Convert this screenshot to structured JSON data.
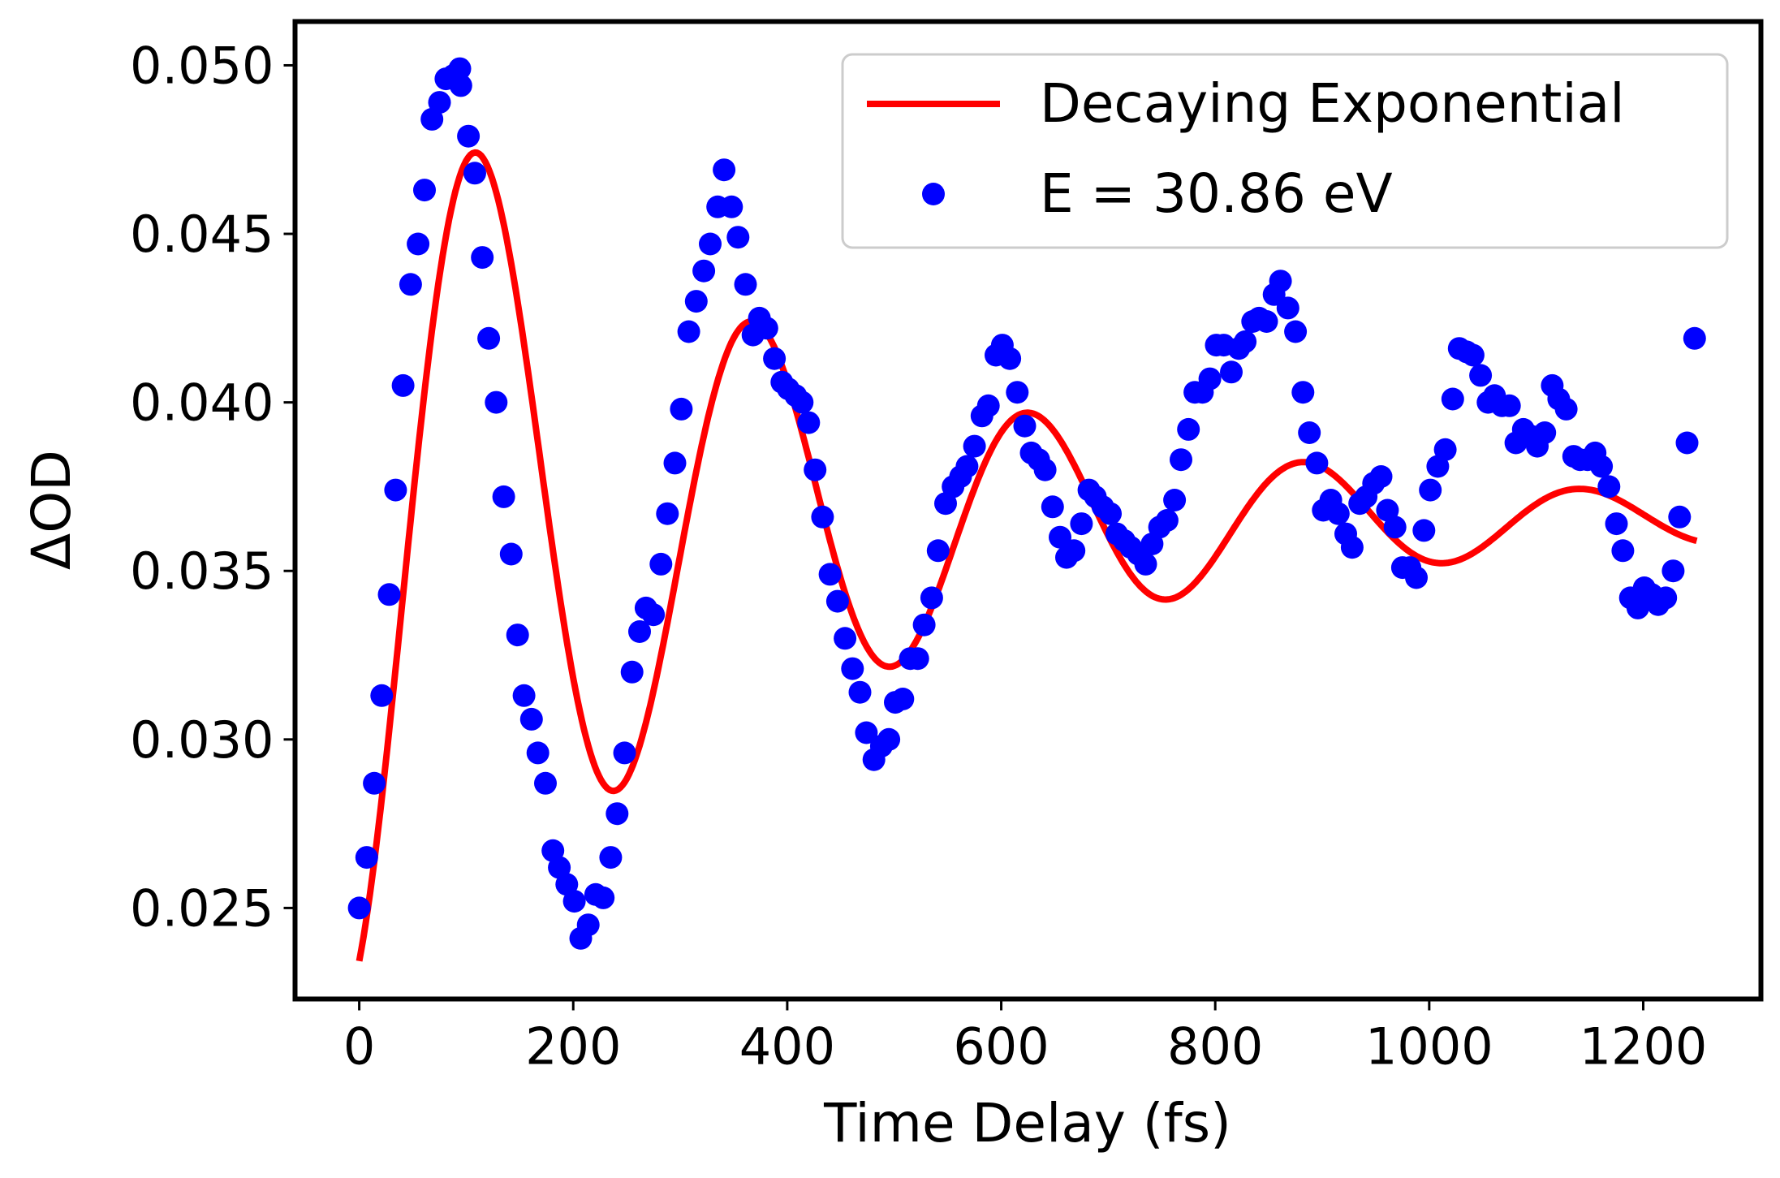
{
  "chart_data": {
    "type": "line+scatter",
    "title": "",
    "xlabel": "Time Delay (fs)",
    "ylabel": "ΔOD",
    "xlim": [
      -60,
      1310
    ],
    "ylim": [
      0.0223,
      0.0513
    ],
    "xticks": [
      0,
      200,
      400,
      600,
      800,
      1000,
      1200
    ],
    "xtick_labels": [
      "0",
      "200",
      "400",
      "600",
      "800",
      "1000",
      "1200"
    ],
    "yticks": [
      0.025,
      0.03,
      0.035,
      0.04,
      0.045,
      0.05
    ],
    "ytick_labels": [
      "0.025",
      "0.030",
      "0.035",
      "0.040",
      "0.045",
      "0.050"
    ],
    "grid": false,
    "legend": {
      "location": "upper right",
      "entries": [
        "Decaying Exponential",
        "E = 30.86 eV"
      ]
    },
    "colors": {
      "fit": "#ff0000",
      "data": "#0000ff",
      "frame": "#000000",
      "legend_border": "#cccccc"
    },
    "series": [
      {
        "name": "Decaying Exponential",
        "kind": "line",
        "model": {
          "offset": 0.0365,
          "amplitude": 0.0142,
          "decay_fs": 420,
          "period_fs": 258,
          "phase_rad": -1.17,
          "x_start": 0,
          "x_end": 1250
        }
      },
      {
        "name": "E = 30.86 eV",
        "kind": "scatter",
        "points": [
          [
            0,
            0.025
          ],
          [
            7,
            0.0265
          ],
          [
            14,
            0.0287
          ],
          [
            21,
            0.0313
          ],
          [
            28,
            0.0343
          ],
          [
            34,
            0.0374
          ],
          [
            41,
            0.0405
          ],
          [
            48,
            0.0435
          ],
          [
            55,
            0.0447
          ],
          [
            61,
            0.0463
          ],
          [
            68,
            0.0484
          ],
          [
            75,
            0.0489
          ],
          [
            81,
            0.0496
          ],
          [
            88,
            0.0497
          ],
          [
            94,
            0.0499
          ],
          [
            95,
            0.0494
          ],
          [
            102,
            0.0479
          ],
          [
            108,
            0.0468
          ],
          [
            115,
            0.0443
          ],
          [
            121,
            0.0419
          ],
          [
            128,
            0.04
          ],
          [
            135,
            0.0372
          ],
          [
            142,
            0.0355
          ],
          [
            148,
            0.0331
          ],
          [
            154,
            0.0313
          ],
          [
            161,
            0.0306
          ],
          [
            167,
            0.0296
          ],
          [
            174,
            0.0287
          ],
          [
            181,
            0.0267
          ],
          [
            187,
            0.0262
          ],
          [
            194,
            0.0257
          ],
          [
            201,
            0.0252
          ],
          [
            207,
            0.0241
          ],
          [
            214,
            0.0245
          ],
          [
            221,
            0.0254
          ],
          [
            228,
            0.0253
          ],
          [
            235,
            0.0265
          ],
          [
            241,
            0.0278
          ],
          [
            248,
            0.0296
          ],
          [
            255,
            0.032
          ],
          [
            262,
            0.0332
          ],
          [
            268,
            0.0339
          ],
          [
            275,
            0.0337
          ],
          [
            282,
            0.0352
          ],
          [
            288,
            0.0367
          ],
          [
            295,
            0.0382
          ],
          [
            301,
            0.0398
          ],
          [
            308,
            0.0421
          ],
          [
            315,
            0.043
          ],
          [
            322,
            0.0439
          ],
          [
            328,
            0.0447
          ],
          [
            335,
            0.0458
          ],
          [
            341,
            0.0469
          ],
          [
            348,
            0.0458
          ],
          [
            354,
            0.0449
          ],
          [
            361,
            0.0435
          ],
          [
            368,
            0.042
          ],
          [
            374,
            0.0425
          ],
          [
            381,
            0.0422
          ],
          [
            388,
            0.0413
          ],
          [
            395,
            0.0406
          ],
          [
            401,
            0.0404
          ],
          [
            408,
            0.0402
          ],
          [
            414,
            0.04
          ],
          [
            420,
            0.0394
          ],
          [
            426,
            0.038
          ],
          [
            433,
            0.0366
          ],
          [
            440,
            0.0349
          ],
          [
            447,
            0.0341
          ],
          [
            454,
            0.033
          ],
          [
            461,
            0.0321
          ],
          [
            468,
            0.0314
          ],
          [
            474,
            0.0302
          ],
          [
            481,
            0.0294
          ],
          [
            488,
            0.0298
          ],
          [
            495,
            0.03
          ],
          [
            501,
            0.0311
          ],
          [
            508,
            0.0312
          ],
          [
            515,
            0.0324
          ],
          [
            522,
            0.0324
          ],
          [
            528,
            0.0334
          ],
          [
            535,
            0.0342
          ],
          [
            541,
            0.0356
          ],
          [
            548,
            0.037
          ],
          [
            555,
            0.0375
          ],
          [
            562,
            0.0378
          ],
          [
            568,
            0.0381
          ],
          [
            575,
            0.0387
          ],
          [
            582,
            0.0396
          ],
          [
            588,
            0.0399
          ],
          [
            595,
            0.0414
          ],
          [
            601,
            0.0417
          ],
          [
            608,
            0.0413
          ],
          [
            615,
            0.0403
          ],
          [
            622,
            0.0393
          ],
          [
            628,
            0.0385
          ],
          [
            635,
            0.0383
          ],
          [
            641,
            0.038
          ],
          [
            648,
            0.0369
          ],
          [
            655,
            0.036
          ],
          [
            661,
            0.0354
          ],
          [
            668,
            0.0356
          ],
          [
            675,
            0.0364
          ],
          [
            682,
            0.0374
          ],
          [
            688,
            0.0372
          ],
          [
            695,
            0.0369
          ],
          [
            702,
            0.0367
          ],
          [
            708,
            0.0361
          ],
          [
            715,
            0.0359
          ],
          [
            721,
            0.0357
          ],
          [
            728,
            0.0355
          ],
          [
            735,
            0.0352
          ],
          [
            741,
            0.0358
          ],
          [
            748,
            0.0363
          ],
          [
            755,
            0.0365
          ],
          [
            762,
            0.0371
          ],
          [
            768,
            0.0383
          ],
          [
            775,
            0.0392
          ],
          [
            781,
            0.0403
          ],
          [
            788,
            0.0403
          ],
          [
            795,
            0.0407
          ],
          [
            801,
            0.0417
          ],
          [
            808,
            0.0417
          ],
          [
            815,
            0.0409
          ],
          [
            822,
            0.0416
          ],
          [
            828,
            0.0418
          ],
          [
            835,
            0.0424
          ],
          [
            841,
            0.0425
          ],
          [
            848,
            0.0424
          ],
          [
            855,
            0.0432
          ],
          [
            861,
            0.0436
          ],
          [
            868,
            0.0428
          ],
          [
            875,
            0.0421
          ],
          [
            882,
            0.0403
          ],
          [
            888,
            0.0391
          ],
          [
            895,
            0.0382
          ],
          [
            901,
            0.0368
          ],
          [
            908,
            0.0371
          ],
          [
            915,
            0.0367
          ],
          [
            922,
            0.0361
          ],
          [
            928,
            0.0357
          ],
          [
            935,
            0.037
          ],
          [
            941,
            0.0372
          ],
          [
            948,
            0.0376
          ],
          [
            955,
            0.0378
          ],
          [
            961,
            0.0368
          ],
          [
            968,
            0.0363
          ],
          [
            975,
            0.0351
          ],
          [
            982,
            0.0351
          ],
          [
            988,
            0.0348
          ],
          [
            995,
            0.0362
          ],
          [
            1001,
            0.0374
          ],
          [
            1008,
            0.0381
          ],
          [
            1015,
            0.0386
          ],
          [
            1022,
            0.0401
          ],
          [
            1028,
            0.0416
          ],
          [
            1035,
            0.0415
          ],
          [
            1041,
            0.0414
          ],
          [
            1048,
            0.0408
          ],
          [
            1055,
            0.04
          ],
          [
            1061,
            0.0402
          ],
          [
            1068,
            0.0399
          ],
          [
            1075,
            0.0399
          ],
          [
            1081,
            0.0388
          ],
          [
            1088,
            0.0392
          ],
          [
            1095,
            0.039
          ],
          [
            1101,
            0.0387
          ],
          [
            1108,
            0.0391
          ],
          [
            1115,
            0.0405
          ],
          [
            1121,
            0.0401
          ],
          [
            1128,
            0.0398
          ],
          [
            1135,
            0.0384
          ],
          [
            1141,
            0.0383
          ],
          [
            1148,
            0.0383
          ],
          [
            1155,
            0.0385
          ],
          [
            1161,
            0.0381
          ],
          [
            1168,
            0.0375
          ],
          [
            1175,
            0.0364
          ],
          [
            1181,
            0.0356
          ],
          [
            1188,
            0.0342
          ],
          [
            1195,
            0.0339
          ],
          [
            1201,
            0.0345
          ],
          [
            1208,
            0.0343
          ],
          [
            1214,
            0.034
          ],
          [
            1221,
            0.0342
          ],
          [
            1228,
            0.035
          ],
          [
            1234,
            0.0366
          ],
          [
            1241,
            0.0388
          ],
          [
            1248,
            0.0419
          ]
        ]
      }
    ]
  }
}
